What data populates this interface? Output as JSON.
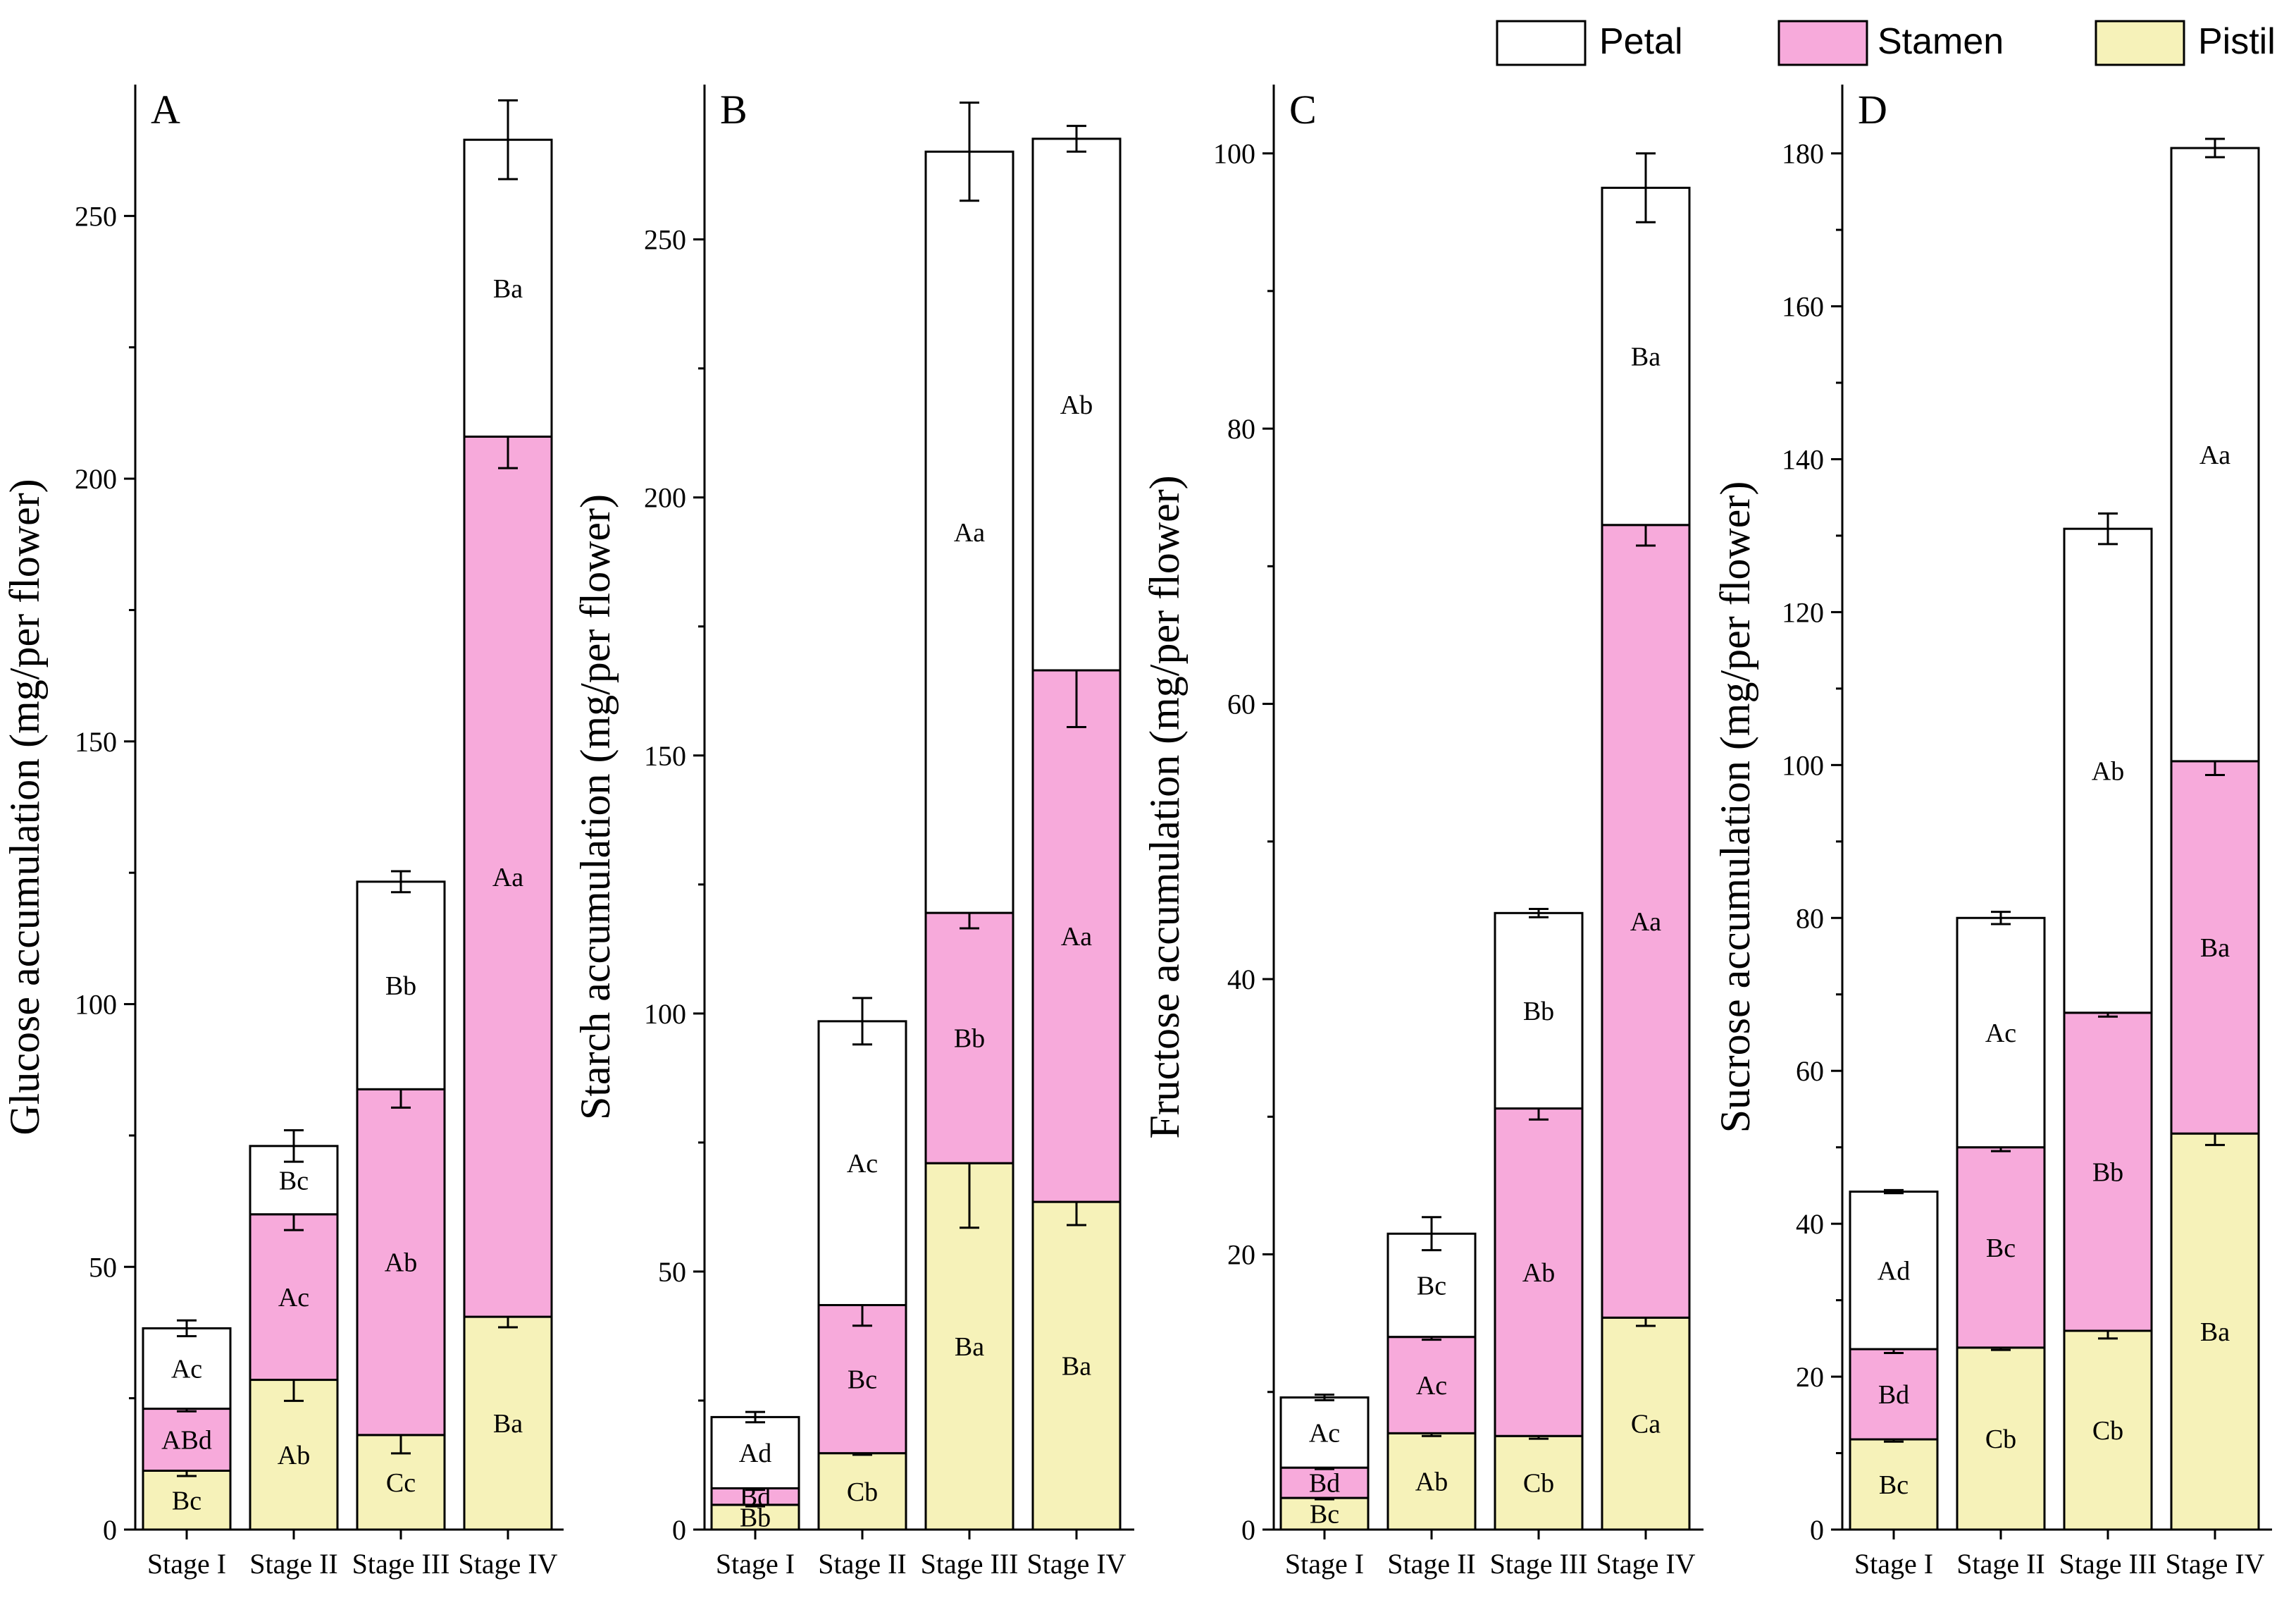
{
  "legend": [
    {
      "label": "Petal",
      "color": "#ffffff"
    },
    {
      "label": "Stamen",
      "color": "#f7aadb"
    },
    {
      "label": "Pistil",
      "color": "#f6f2b9"
    }
  ],
  "chart_data": [
    {
      "type": "bar",
      "stacked": true,
      "panel": "A",
      "ylabel": "Glucose accumulation (mg/per flower)",
      "categories": [
        "Stage I",
        "Stage II",
        "Stage III",
        "Stage IV"
      ],
      "ylim": [
        0,
        275
      ],
      "yticks": [
        0,
        50,
        100,
        150,
        200,
        250
      ],
      "series": [
        {
          "name": "Pistil",
          "values": [
            11.2,
            28.5,
            18,
            40.5
          ],
          "errors": [
            1,
            4,
            3.5,
            2
          ],
          "labels": [
            "Bc",
            "Ab",
            "Cc",
            "Ba"
          ]
        },
        {
          "name": "Stamen",
          "values": [
            11.8,
            31.5,
            65.8,
            167.5
          ],
          "errors": [
            0.5,
            3,
            3.5,
            6
          ],
          "labels": [
            "ABd",
            "Ac",
            "Ab",
            "Aa"
          ]
        },
        {
          "name": "Petal",
          "values": [
            15.3,
            13,
            39.5,
            56.5
          ],
          "errors": [
            1.5,
            3,
            2,
            7.5
          ],
          "labels": [
            "Ac",
            "Bc",
            "Bb",
            "Ba"
          ]
        }
      ]
    },
    {
      "type": "bar",
      "stacked": true,
      "panel": "B",
      "ylabel": "Starch accumulation (mg/per flower)",
      "categories": [
        "Stage I",
        "Stage II",
        "Stage III",
        "Stage IV"
      ],
      "ylim": [
        0,
        280
      ],
      "yticks": [
        0,
        50,
        100,
        150,
        200,
        250
      ],
      "series": [
        {
          "name": "Pistil",
          "values": [
            4.8,
            14.8,
            71,
            63.5
          ],
          "errors": [
            0.3,
            0.3,
            12.5,
            4.5
          ],
          "labels": [
            "Bb",
            "Cb",
            "Ba",
            "Ba"
          ]
        },
        {
          "name": "Stamen",
          "values": [
            3.2,
            28.7,
            48.5,
            103
          ],
          "errors": [
            0.3,
            4,
            3,
            11
          ],
          "labels": [
            "Bd",
            "Bc",
            "Bb",
            "Aa"
          ]
        },
        {
          "name": "Petal",
          "values": [
            13.8,
            55,
            147.5,
            103
          ],
          "errors": [
            1,
            4.5,
            9.5,
            2.5
          ],
          "labels": [
            "Ad",
            "Ac",
            "Aa",
            "Ab"
          ]
        }
      ]
    },
    {
      "type": "bar",
      "stacked": true,
      "panel": "C",
      "ylabel": "Fructose accumulation (mg/per flower)",
      "categories": [
        "Stage I",
        "Stage II",
        "Stage III",
        "Stage IV"
      ],
      "ylim": [
        0,
        105
      ],
      "yticks": [
        0,
        20,
        40,
        60,
        80,
        100
      ],
      "series": [
        {
          "name": "Pistil",
          "values": [
            2.3,
            7,
            6.8,
            15.4
          ],
          "errors": [
            0.1,
            0.2,
            0.2,
            0.6
          ],
          "labels": [
            "Bc",
            "Ab",
            "Cb",
            "Ca"
          ]
        },
        {
          "name": "Stamen",
          "values": [
            2.2,
            7,
            23.8,
            57.6
          ],
          "errors": [
            0.1,
            0.2,
            0.8,
            1.5
          ],
          "labels": [
            "Bd",
            "Ac",
            "Ab",
            "Aa"
          ]
        },
        {
          "name": "Petal",
          "values": [
            5.1,
            7.5,
            14.2,
            24.5
          ],
          "errors": [
            0.2,
            1.2,
            0.3,
            2.5
          ],
          "labels": [
            "Ac",
            "Bc",
            "Bb",
            "Ba"
          ]
        }
      ]
    },
    {
      "type": "bar",
      "stacked": true,
      "panel": "D",
      "ylabel": "Sucrose accumulation (mg/per flower)",
      "categories": [
        "Stage I",
        "Stage II",
        "Stage III",
        "Stage IV"
      ],
      "ylim": [
        0,
        189
      ],
      "yticks": [
        0,
        20,
        40,
        60,
        80,
        100,
        120,
        140,
        160,
        180
      ],
      "series": [
        {
          "name": "Pistil",
          "values": [
            11.8,
            23.8,
            26,
            51.8
          ],
          "errors": [
            0.3,
            0.3,
            1,
            1.5
          ],
          "labels": [
            "Bc",
            "Cb",
            "Cb",
            "Ba"
          ]
        },
        {
          "name": "Stamen",
          "values": [
            11.8,
            26.2,
            41.6,
            48.7
          ],
          "errors": [
            0.5,
            0.5,
            0.5,
            1.8
          ],
          "labels": [
            "Bd",
            "Bc",
            "Bb",
            "Ba"
          ]
        },
        {
          "name": "Petal",
          "values": [
            20.6,
            30,
            63.3,
            80.2
          ],
          "errors": [
            0.2,
            0.8,
            2,
            1.2
          ],
          "labels": [
            "Ad",
            "Ac",
            "Ab",
            "Aa"
          ]
        }
      ]
    }
  ]
}
